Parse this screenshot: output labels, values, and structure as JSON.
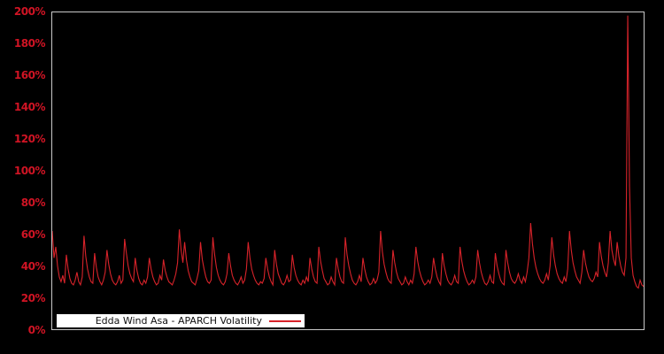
{
  "window": {
    "background": "#000000"
  },
  "chart_data": {
    "type": "line",
    "title": "Edda Wind Asa - APARCH Volatility",
    "xlabel": "",
    "ylabel": "",
    "y_unit": "%",
    "ylim": [
      0,
      200
    ],
    "y_tick_interval": 20,
    "y_ticks": [
      0,
      20,
      40,
      60,
      80,
      100,
      120,
      140,
      160,
      180,
      200
    ],
    "y_tick_labels": [
      "0%",
      "20%",
      "40%",
      "60%",
      "80%",
      "100%",
      "120%",
      "140%",
      "160%",
      "180%",
      "200%"
    ],
    "x_tick_labels": [],
    "grid": false,
    "legend": {
      "label": "Edda Wind Asa - APARCH Volatility",
      "position": "bottom-left-inside",
      "background": "#ffffff",
      "text_color": "#111111"
    },
    "colors": {
      "line": "#d8232a",
      "axis_labels": "#d01424",
      "plot_border": "#c9c9c9",
      "background": "#000000"
    },
    "series": [
      {
        "name": "Edda Wind Asa - APARCH Volatility",
        "unit": "%",
        "values": [
          62,
          45,
          52,
          40,
          33,
          30,
          34,
          29,
          47,
          38,
          32,
          29,
          28,
          31,
          36,
          30,
          28,
          33,
          59,
          46,
          38,
          33,
          30,
          29,
          48,
          39,
          33,
          30,
          28,
          31,
          36,
          50,
          41,
          35,
          31,
          29,
          28,
          30,
          34,
          29,
          31,
          57,
          48,
          40,
          35,
          32,
          30,
          45,
          37,
          32,
          29,
          28,
          31,
          29,
          33,
          45,
          38,
          33,
          30,
          28,
          29,
          34,
          31,
          44,
          37,
          33,
          30,
          29,
          28,
          31,
          35,
          42,
          63,
          50,
          42,
          55,
          44,
          37,
          33,
          30,
          29,
          28,
          32,
          37,
          55,
          44,
          38,
          33,
          30,
          29,
          31,
          58,
          47,
          39,
          34,
          31,
          29,
          28,
          30,
          35,
          48,
          40,
          34,
          31,
          29,
          28,
          30,
          33,
          29,
          31,
          38,
          55,
          45,
          38,
          34,
          31,
          29,
          28,
          30,
          29,
          32,
          45,
          38,
          33,
          30,
          28,
          50,
          41,
          35,
          32,
          29,
          28,
          30,
          34,
          30,
          31,
          47,
          39,
          34,
          31,
          29,
          28,
          31,
          29,
          33,
          30,
          45,
          38,
          33,
          30,
          29,
          52,
          43,
          37,
          32,
          30,
          28,
          29,
          33,
          30,
          28,
          45,
          38,
          33,
          30,
          29,
          58,
          47,
          40,
          35,
          31,
          29,
          28,
          30,
          34,
          30,
          45,
          38,
          33,
          30,
          28,
          29,
          32,
          29,
          31,
          36,
          62,
          49,
          41,
          36,
          32,
          30,
          29,
          50,
          42,
          36,
          32,
          30,
          28,
          29,
          33,
          30,
          28,
          31,
          29,
          35,
          52,
          43,
          37,
          33,
          30,
          28,
          29,
          31,
          29,
          33,
          45,
          38,
          33,
          30,
          28,
          48,
          40,
          35,
          31,
          29,
          28,
          30,
          34,
          30,
          29,
          52,
          43,
          37,
          33,
          30,
          28,
          29,
          31,
          29,
          33,
          50,
          42,
          36,
          32,
          29,
          28,
          30,
          34,
          30,
          29,
          48,
          40,
          35,
          31,
          29,
          28,
          50,
          42,
          36,
          32,
          30,
          29,
          31,
          35,
          31,
          29,
          33,
          30,
          36,
          45,
          67,
          54,
          45,
          39,
          35,
          32,
          30,
          29,
          31,
          35,
          31,
          40,
          58,
          47,
          40,
          35,
          32,
          30,
          29,
          33,
          30,
          38,
          62,
          50,
          42,
          37,
          33,
          31,
          29,
          36,
          50,
          42,
          37,
          33,
          31,
          30,
          32,
          36,
          33,
          55,
          46,
          40,
          36,
          33,
          42,
          62,
          50,
          44,
          40,
          55,
          46,
          40,
          36,
          34,
          45,
          198,
          90,
          45,
          34,
          30,
          27,
          26,
          31,
          28,
          27
        ]
      }
    ]
  }
}
